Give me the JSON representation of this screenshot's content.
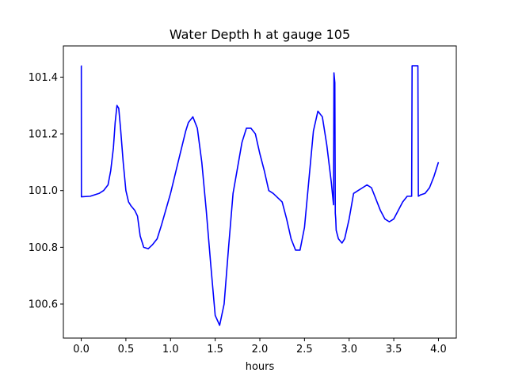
{
  "chart_data": {
    "type": "line",
    "title": "Water Depth h at gauge 105",
    "xlabel": "hours",
    "ylabel": "",
    "xlim": [
      -0.2,
      4.2
    ],
    "ylim": [
      100.48,
      101.51
    ],
    "xticks": [
      0.0,
      0.5,
      1.0,
      1.5,
      2.0,
      2.5,
      3.0,
      3.5,
      4.0
    ],
    "xtick_labels": [
      "0.0",
      "0.5",
      "1.0",
      "1.5",
      "2.0",
      "2.5",
      "3.0",
      "3.5",
      "4.0"
    ],
    "yticks": [
      100.6,
      100.8,
      101.0,
      101.2,
      101.4
    ],
    "ytick_labels": [
      "100.6",
      "100.8",
      "101.0",
      "101.2",
      "101.4"
    ],
    "grid": false,
    "color": "#0000ff",
    "series": [
      {
        "x": [
          0.0,
          0.001,
          0.002,
          0.1,
          0.2,
          0.25,
          0.3,
          0.33,
          0.36,
          0.38,
          0.4,
          0.42,
          0.44,
          0.47,
          0.5,
          0.53,
          0.56,
          0.6,
          0.63,
          0.66,
          0.7,
          0.75,
          0.8,
          0.85,
          0.9,
          1.0,
          1.1,
          1.17,
          1.2,
          1.25,
          1.3,
          1.35,
          1.4,
          1.45,
          1.5,
          1.55,
          1.6,
          1.65,
          1.7,
          1.75,
          1.8,
          1.85,
          1.9,
          1.95,
          2.0,
          2.05,
          2.1,
          2.15,
          2.25,
          2.3,
          2.35,
          2.4,
          2.45,
          2.5,
          2.55,
          2.6,
          2.65,
          2.7,
          2.75,
          2.8,
          2.825,
          2.83,
          2.84,
          2.845,
          2.85,
          2.855,
          2.88,
          2.92,
          2.95,
          3.0,
          3.05,
          3.1,
          3.15,
          3.2,
          3.25,
          3.3,
          3.35,
          3.4,
          3.45,
          3.5,
          3.55,
          3.6,
          3.65,
          3.7,
          3.705,
          3.77,
          3.775,
          3.8,
          3.85,
          3.9,
          3.95,
          4.0
        ],
        "y": [
          101.44,
          101.44,
          100.978,
          100.98,
          100.99,
          101.0,
          101.02,
          101.07,
          101.15,
          101.24,
          101.3,
          101.29,
          101.22,
          101.1,
          101.0,
          100.96,
          100.945,
          100.93,
          100.91,
          100.84,
          100.8,
          100.795,
          100.81,
          100.83,
          100.88,
          100.99,
          101.12,
          101.21,
          101.24,
          101.26,
          101.22,
          101.1,
          100.93,
          100.74,
          100.56,
          100.525,
          100.6,
          100.8,
          100.99,
          101.08,
          101.17,
          101.22,
          101.22,
          101.2,
          101.13,
          101.07,
          101.0,
          100.99,
          100.96,
          100.9,
          100.83,
          100.79,
          100.79,
          100.87,
          101.04,
          101.21,
          101.28,
          101.26,
          101.16,
          101.03,
          100.95,
          101.415,
          101.38,
          100.92,
          100.9,
          100.86,
          100.83,
          100.815,
          100.83,
          100.9,
          100.99,
          101.0,
          101.01,
          101.02,
          101.01,
          100.97,
          100.93,
          100.9,
          100.89,
          100.9,
          100.93,
          100.96,
          100.98,
          100.98,
          101.44,
          101.44,
          100.98,
          100.985,
          100.99,
          101.01,
          101.05,
          101.1
        ]
      }
    ]
  }
}
